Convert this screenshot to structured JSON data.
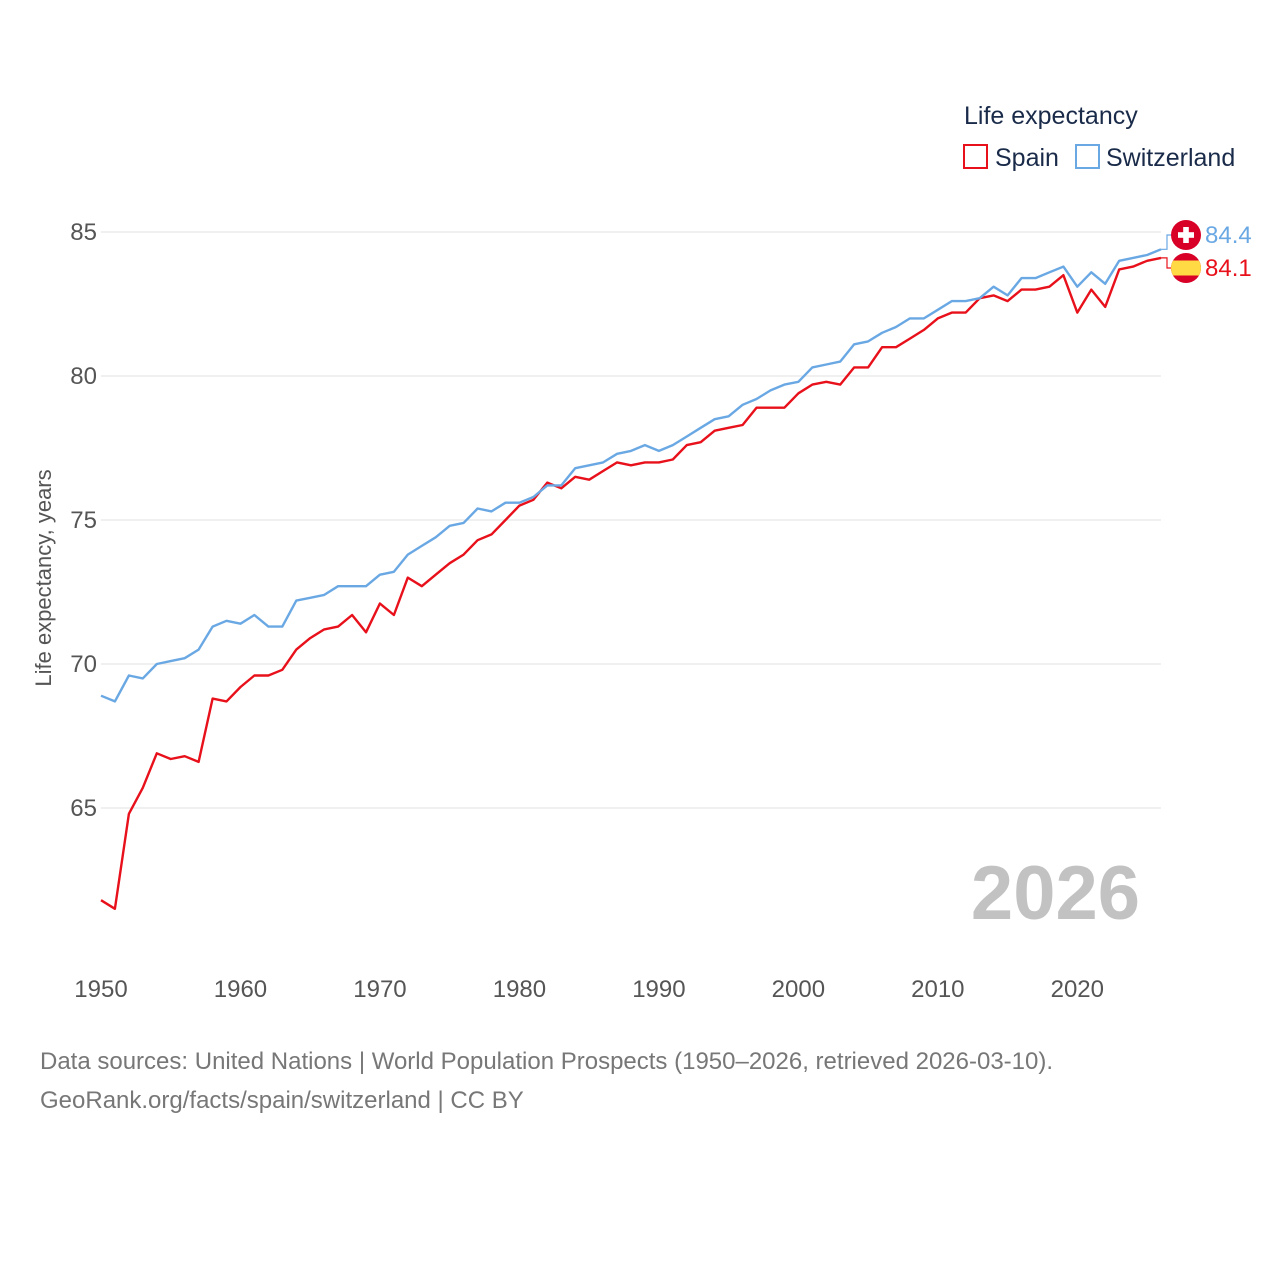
{
  "chart_data": {
    "type": "line",
    "legend_title": "Life expectancy",
    "legend_position": "top-right",
    "ylabel": "Life expectancy, years",
    "xlabel": "",
    "xlim": [
      1950,
      2026
    ],
    "ylim": [
      60,
      86.5
    ],
    "x_ticks": [
      1950,
      1960,
      1970,
      1980,
      1990,
      2000,
      2010,
      2020
    ],
    "y_ticks": [
      65,
      70,
      75,
      80,
      85
    ],
    "grid": true,
    "year_watermark": "2026",
    "x": [
      1950,
      1951,
      1952,
      1953,
      1954,
      1955,
      1956,
      1957,
      1958,
      1959,
      1960,
      1961,
      1962,
      1963,
      1964,
      1965,
      1966,
      1967,
      1968,
      1969,
      1970,
      1971,
      1972,
      1973,
      1974,
      1975,
      1976,
      1977,
      1978,
      1979,
      1980,
      1981,
      1982,
      1983,
      1984,
      1985,
      1986,
      1987,
      1988,
      1989,
      1990,
      1991,
      1992,
      1993,
      1994,
      1995,
      1996,
      1997,
      1998,
      1999,
      2000,
      2001,
      2002,
      2003,
      2004,
      2005,
      2006,
      2007,
      2008,
      2009,
      2010,
      2011,
      2012,
      2013,
      2014,
      2015,
      2016,
      2017,
      2018,
      2019,
      2020,
      2021,
      2022,
      2023,
      2024,
      2025,
      2026
    ],
    "series": [
      {
        "name": "Spain",
        "color": "#e8101a",
        "end_label": "84.1",
        "flag": "spain-flag-icon",
        "values": [
          61.8,
          61.5,
          64.8,
          65.7,
          66.9,
          66.7,
          66.8,
          66.6,
          68.8,
          68.7,
          69.2,
          69.6,
          69.6,
          69.8,
          70.5,
          70.9,
          71.2,
          71.3,
          71.7,
          71.1,
          72.1,
          71.7,
          73.0,
          72.7,
          73.1,
          73.5,
          73.8,
          74.3,
          74.5,
          75.0,
          75.5,
          75.7,
          76.3,
          76.1,
          76.5,
          76.4,
          76.7,
          77.0,
          76.9,
          77.0,
          77.0,
          77.1,
          77.6,
          77.7,
          78.1,
          78.2,
          78.3,
          78.9,
          78.9,
          78.9,
          79.4,
          79.7,
          79.8,
          79.7,
          80.3,
          80.3,
          81.0,
          81.0,
          81.3,
          81.6,
          82.0,
          82.2,
          82.2,
          82.7,
          82.8,
          82.6,
          83.0,
          83.0,
          83.1,
          83.5,
          82.2,
          83.0,
          82.4,
          83.7,
          83.8,
          84.0,
          84.1
        ]
      },
      {
        "name": "Switzerland",
        "color": "#6aa8e4",
        "end_label": "84.4",
        "flag": "switzerland-flag-icon",
        "values": [
          68.9,
          68.7,
          69.6,
          69.5,
          70.0,
          70.1,
          70.2,
          70.5,
          71.3,
          71.5,
          71.4,
          71.7,
          71.3,
          71.3,
          72.2,
          72.3,
          72.4,
          72.7,
          72.7,
          72.7,
          73.1,
          73.2,
          73.8,
          74.1,
          74.4,
          74.8,
          74.9,
          75.4,
          75.3,
          75.6,
          75.6,
          75.8,
          76.2,
          76.2,
          76.8,
          76.9,
          77.0,
          77.3,
          77.4,
          77.6,
          77.4,
          77.6,
          77.9,
          78.2,
          78.5,
          78.6,
          79.0,
          79.2,
          79.5,
          79.7,
          79.8,
          80.3,
          80.4,
          80.5,
          81.1,
          81.2,
          81.5,
          81.7,
          82.0,
          82.0,
          82.3,
          82.6,
          82.6,
          82.7,
          83.1,
          82.8,
          83.4,
          83.4,
          83.6,
          83.8,
          83.1,
          83.6,
          83.2,
          84.0,
          84.1,
          84.2,
          84.4
        ]
      }
    ]
  },
  "source": {
    "line1": "Data sources: United Nations | World Population Prospects (1950–2026, retrieved 2026-03-10).",
    "line2": "GeoRank.org/facts/spain/switzerland | CC BY"
  }
}
